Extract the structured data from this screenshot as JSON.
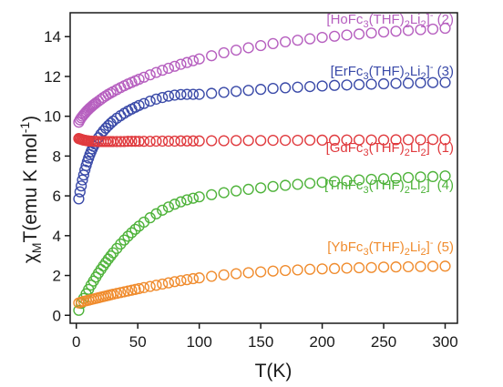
{
  "chart_data": {
    "type": "scatter",
    "xlabel": "T(K)",
    "ylabel": "χMT(emu K mol-1)",
    "xlim": [
      -5,
      310
    ],
    "ylim": [
      -0.4,
      15.2
    ],
    "xticks": [
      0,
      50,
      100,
      150,
      200,
      250,
      300
    ],
    "yticks": [
      0,
      2,
      4,
      6,
      8,
      10,
      12,
      14
    ],
    "grid": false,
    "legend": "inline-labels",
    "series": [
      {
        "name": "[HoFc3(THF)2Li2]- (2)",
        "color": "#b65fbf",
        "label_parts": [
          [
            "[HoFc",
            ""
          ],
          [
            "3",
            "sub"
          ],
          [
            "(THF)",
            ""
          ],
          [
            "2",
            "sub"
          ],
          [
            "Li",
            ""
          ],
          [
            "2",
            "sub"
          ],
          [
            "]",
            ""
          ],
          [
            "-",
            "sup"
          ],
          [
            " (2)",
            ""
          ]
        ],
        "x": [
          2,
          3,
          4,
          5,
          6,
          7,
          8,
          9,
          10,
          11,
          12,
          13,
          14,
          15,
          16,
          18,
          20,
          22,
          24,
          26,
          28,
          30,
          33,
          36,
          39,
          42,
          45,
          48,
          51,
          55,
          60,
          65,
          70,
          75,
          80,
          85,
          90,
          95,
          100,
          110,
          120,
          130,
          140,
          150,
          160,
          170,
          180,
          190,
          200,
          210,
          220,
          230,
          240,
          250,
          260,
          270,
          280,
          290,
          300
        ],
        "y": [
          9.7,
          9.82,
          9.92,
          10.0,
          10.08,
          10.15,
          10.22,
          10.29,
          10.35,
          10.41,
          10.46,
          10.52,
          10.57,
          10.62,
          10.67,
          10.76,
          10.85,
          10.94,
          11.02,
          11.1,
          11.17,
          11.24,
          11.34,
          11.44,
          11.53,
          11.62,
          11.7,
          11.78,
          11.86,
          11.96,
          12.08,
          12.2,
          12.31,
          12.41,
          12.51,
          12.61,
          12.7,
          12.79,
          12.88,
          13.04,
          13.19,
          13.32,
          13.44,
          13.55,
          13.65,
          13.74,
          13.82,
          13.89,
          13.96,
          14.02,
          14.08,
          14.13,
          14.18,
          14.23,
          14.27,
          14.31,
          14.35,
          14.38,
          14.42
        ]
      },
      {
        "name": "[ErFc3(THF)2Li2]- (3)",
        "color": "#3a4aa8",
        "label_parts": [
          [
            "[ErFc",
            ""
          ],
          [
            "3",
            "sub"
          ],
          [
            "(THF)",
            ""
          ],
          [
            "2",
            "sub"
          ],
          [
            "Li",
            ""
          ],
          [
            "2",
            "sub"
          ],
          [
            "]",
            ""
          ],
          [
            "-",
            "sup"
          ],
          [
            " (3)",
            ""
          ]
        ],
        "x": [
          2,
          3,
          4,
          5,
          6,
          7,
          8,
          9,
          10,
          11,
          12,
          13,
          14,
          15,
          16,
          18,
          20,
          22,
          24,
          26,
          28,
          30,
          33,
          36,
          39,
          42,
          45,
          48,
          51,
          55,
          60,
          65,
          70,
          75,
          80,
          85,
          90,
          95,
          100,
          110,
          120,
          130,
          140,
          150,
          160,
          170,
          180,
          190,
          200,
          210,
          220,
          230,
          240,
          250,
          260,
          270,
          280,
          290,
          300
        ],
        "y": [
          5.85,
          6.2,
          6.5,
          6.8,
          7.05,
          7.3,
          7.52,
          7.72,
          7.9,
          8.07,
          8.22,
          8.36,
          8.49,
          8.61,
          8.72,
          8.92,
          9.1,
          9.26,
          9.4,
          9.53,
          9.65,
          9.76,
          9.9,
          10.03,
          10.15,
          10.26,
          10.36,
          10.45,
          10.54,
          10.64,
          10.76,
          10.86,
          10.94,
          11.01,
          11.06,
          11.09,
          11.1,
          11.1,
          11.1,
          11.15,
          11.2,
          11.25,
          11.3,
          11.35,
          11.4,
          11.43,
          11.46,
          11.49,
          11.52,
          11.55,
          11.57,
          11.59,
          11.61,
          11.63,
          11.65,
          11.66,
          11.68,
          11.69,
          11.7
        ]
      },
      {
        "name": "[GdFc3(THF)2Li2]- (1)",
        "color": "#e03a3e",
        "label_parts": [
          [
            "[GdFc",
            ""
          ],
          [
            "3",
            "sub"
          ],
          [
            "(THF)",
            ""
          ],
          [
            "2",
            "sub"
          ],
          [
            "Li",
            ""
          ],
          [
            "2",
            "sub"
          ],
          [
            "]",
            ""
          ],
          [
            "-",
            "sup"
          ],
          [
            " (1)",
            ""
          ]
        ],
        "x": [
          2,
          3,
          4,
          5,
          6,
          7,
          8,
          9,
          10,
          12,
          14,
          16,
          18,
          20,
          22,
          24,
          26,
          28,
          30,
          33,
          36,
          39,
          42,
          45,
          48,
          51,
          55,
          60,
          65,
          70,
          75,
          80,
          85,
          90,
          95,
          100,
          110,
          120,
          130,
          140,
          150,
          160,
          170,
          180,
          190,
          200,
          210,
          220,
          230,
          240,
          250,
          260,
          270,
          280,
          290,
          300
        ],
        "y": [
          8.88,
          8.86,
          8.84,
          8.82,
          8.8,
          8.79,
          8.78,
          8.77,
          8.76,
          8.75,
          8.74,
          8.74,
          8.73,
          8.73,
          8.73,
          8.73,
          8.73,
          8.73,
          8.73,
          8.73,
          8.73,
          8.73,
          8.74,
          8.74,
          8.74,
          8.74,
          8.74,
          8.74,
          8.75,
          8.75,
          8.75,
          8.75,
          8.76,
          8.76,
          8.76,
          8.76,
          8.77,
          8.77,
          8.78,
          8.78,
          8.78,
          8.79,
          8.79,
          8.79,
          8.8,
          8.8,
          8.8,
          8.81,
          8.81,
          8.81,
          8.81,
          8.82,
          8.82,
          8.82,
          8.83,
          8.83
        ]
      },
      {
        "name": "[TmFc3(THF)2Li2]- (4)",
        "color": "#4fb33b",
        "label_parts": [
          [
            "[TmFc",
            ""
          ],
          [
            "3",
            "sub"
          ],
          [
            "(THF)",
            ""
          ],
          [
            "2",
            "sub"
          ],
          [
            "Li",
            ""
          ],
          [
            "2",
            "sub"
          ],
          [
            "]",
            ""
          ],
          [
            "-",
            "sup"
          ],
          [
            " (4)",
            ""
          ]
        ],
        "x": [
          2,
          4,
          6,
          8,
          10,
          12,
          14,
          16,
          18,
          20,
          22,
          24,
          26,
          28,
          30,
          33,
          36,
          39,
          42,
          45,
          48,
          51,
          55,
          60,
          65,
          70,
          75,
          80,
          85,
          90,
          95,
          100,
          110,
          120,
          130,
          140,
          150,
          160,
          170,
          180,
          190,
          200,
          210,
          220,
          230,
          240,
          250,
          260,
          270,
          280,
          290,
          300
        ],
        "y": [
          0.25,
          0.6,
          0.85,
          1.08,
          1.3,
          1.52,
          1.72,
          1.92,
          2.12,
          2.3,
          2.48,
          2.65,
          2.82,
          2.98,
          3.14,
          3.36,
          3.58,
          3.78,
          3.97,
          4.15,
          4.32,
          4.48,
          4.68,
          4.9,
          5.1,
          5.28,
          5.44,
          5.58,
          5.7,
          5.8,
          5.88,
          5.95,
          6.06,
          6.16,
          6.25,
          6.33,
          6.4,
          6.47,
          6.53,
          6.58,
          6.63,
          6.68,
          6.72,
          6.76,
          6.8,
          6.83,
          6.86,
          6.89,
          6.92,
          6.95,
          6.97,
          7.0
        ]
      },
      {
        "name": "[YbFc3(THF)2Li2]- (5)",
        "color": "#f08c2e",
        "label_parts": [
          [
            "[YbFc",
            ""
          ],
          [
            "3",
            "sub"
          ],
          [
            "(THF)",
            ""
          ],
          [
            "2",
            "sub"
          ],
          [
            "Li",
            ""
          ],
          [
            "2",
            "sub"
          ],
          [
            "]",
            ""
          ],
          [
            "-",
            "sup"
          ],
          [
            " (5)",
            ""
          ]
        ],
        "x": [
          2,
          4,
          6,
          8,
          10,
          12,
          14,
          16,
          18,
          20,
          22,
          24,
          26,
          28,
          30,
          33,
          36,
          39,
          42,
          45,
          48,
          51,
          55,
          60,
          65,
          70,
          75,
          80,
          85,
          90,
          95,
          100,
          110,
          120,
          130,
          140,
          150,
          160,
          170,
          180,
          190,
          200,
          210,
          220,
          230,
          240,
          250,
          260,
          270,
          280,
          290,
          300
        ],
        "y": [
          0.62,
          0.66,
          0.7,
          0.73,
          0.76,
          0.79,
          0.82,
          0.85,
          0.88,
          0.91,
          0.94,
          0.97,
          1.0,
          1.03,
          1.06,
          1.1,
          1.14,
          1.18,
          1.22,
          1.26,
          1.3,
          1.34,
          1.39,
          1.45,
          1.51,
          1.57,
          1.63,
          1.69,
          1.74,
          1.79,
          1.84,
          1.88,
          1.96,
          2.03,
          2.09,
          2.14,
          2.18,
          2.22,
          2.25,
          2.28,
          2.31,
          2.33,
          2.35,
          2.37,
          2.39,
          2.4,
          2.42,
          2.43,
          2.44,
          2.45,
          2.46,
          2.47
        ]
      }
    ]
  }
}
